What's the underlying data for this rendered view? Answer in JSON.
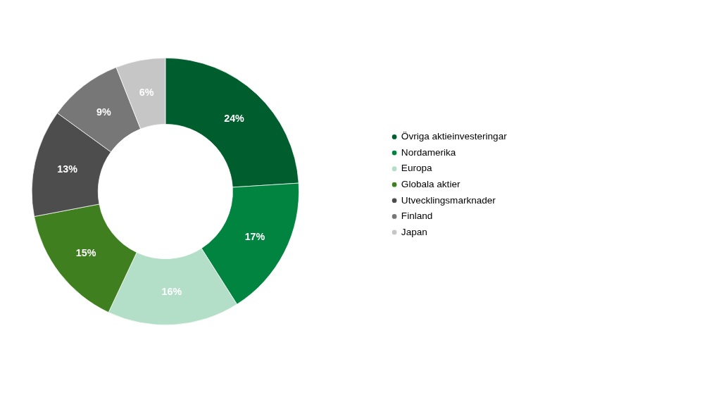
{
  "chart_data": {
    "type": "donut",
    "categories": [
      "Övriga aktieinvesteringar",
      "Nordamerika",
      "Europa",
      "Globala aktier",
      "Utvecklingsmarknader",
      "Finland",
      "Japan"
    ],
    "values": [
      24,
      17,
      16,
      15,
      13,
      9,
      6
    ],
    "colors": [
      "#005e2e",
      "#00843f",
      "#b3dec8",
      "#3f7f1f",
      "#4d4d4d",
      "#777777",
      "#c6c6c6"
    ],
    "value_labels": [
      "24%",
      "17%",
      "16%",
      "15%",
      "13%",
      "9%",
      "6%"
    ],
    "legend": "right"
  }
}
